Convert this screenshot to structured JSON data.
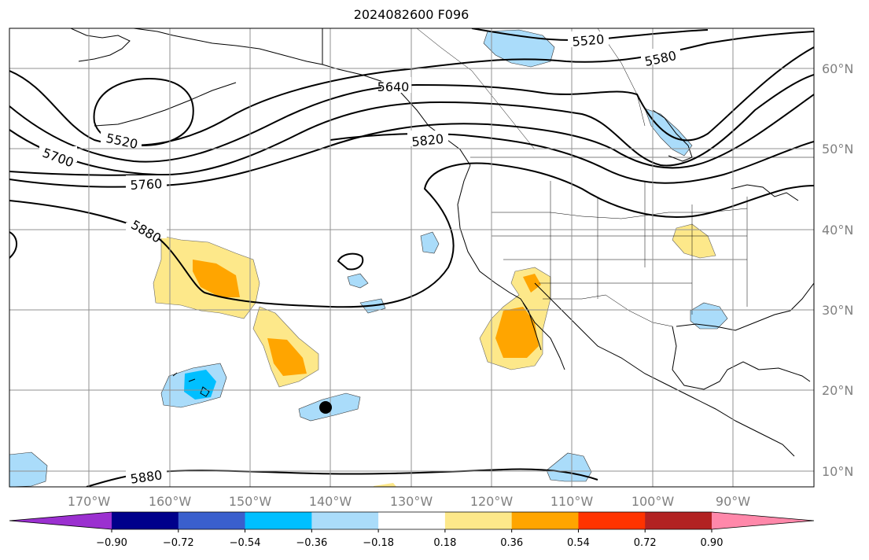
{
  "title": "2024082600 F096",
  "longitude_labels": [
    "170°W",
    "160°W",
    "150°W",
    "140°W",
    "130°W",
    "120°W",
    "110°W",
    "100°W",
    "90°W"
  ],
  "latitude_labels": [
    "60°N",
    "50°N",
    "40°N",
    "30°N",
    "20°N",
    "10°N"
  ],
  "contour_labels": [
    "5520",
    "5580",
    "5640",
    "5700",
    "5760",
    "5820",
    "5880",
    "5520",
    "5880"
  ],
  "colorbar": {
    "ticks": [
      "−0.90",
      "−0.72",
      "−0.54",
      "−0.36",
      "−0.18",
      "0.18",
      "0.36",
      "0.54",
      "0.72",
      "0.90"
    ],
    "colors": [
      "#9b30d0",
      "#00008b",
      "#3a5fcd",
      "#00bfff",
      "#aadcfa",
      "#ffffff",
      "#fde88a",
      "#ffa500",
      "#ff3300",
      "#b22222",
      "#ff88aa"
    ]
  }
}
